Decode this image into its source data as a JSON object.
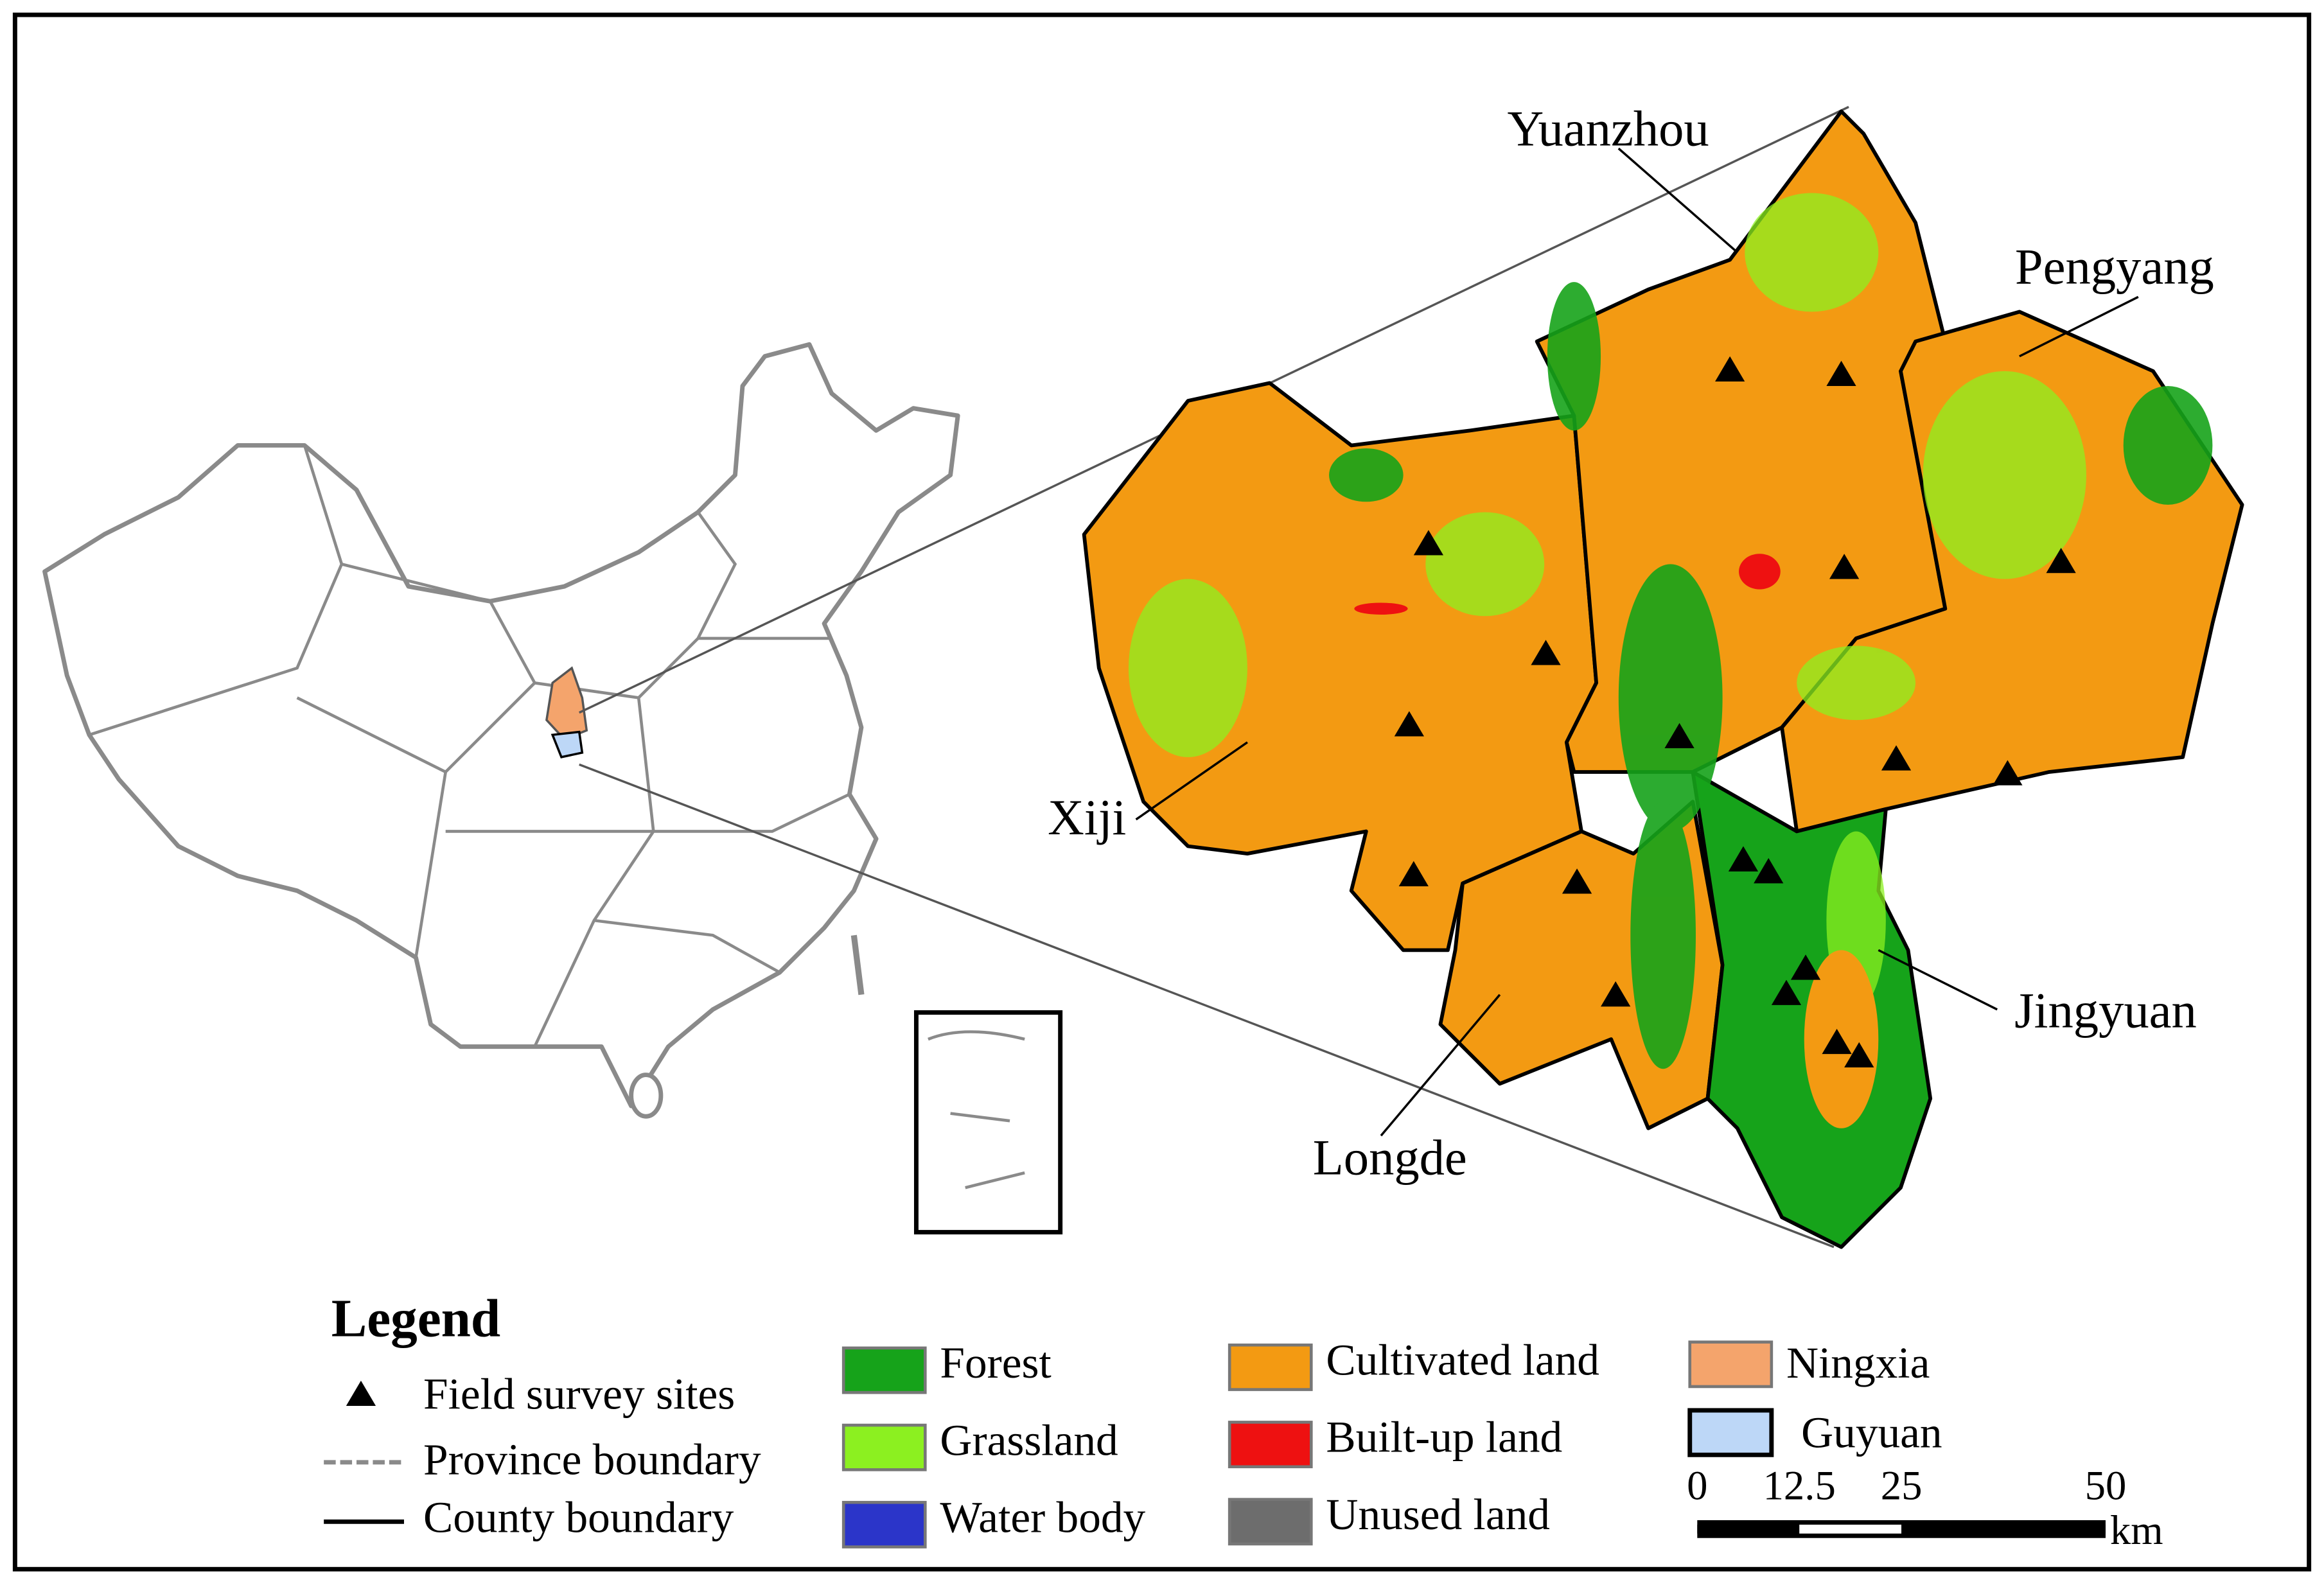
{
  "counties": {
    "yuanzhou": "Yuanzhou",
    "pengyang": "Pengyang",
    "xiji": "Xiji",
    "jingyuan": "Jingyuan",
    "longde": "Longde"
  },
  "legend": {
    "title": "Legend",
    "symbols": [
      "Field survey sites",
      "Province boundary",
      "County boundary"
    ],
    "land_use": [
      "Forest",
      "Grassland",
      "Water body",
      "Cultivated land",
      "Built-up land",
      "Unused land"
    ],
    "regions": [
      "Ningxia",
      "Guyuan"
    ]
  },
  "scale_bar": {
    "ticks": [
      0,
      12.5,
      25,
      50
    ],
    "unit": "km"
  }
}
